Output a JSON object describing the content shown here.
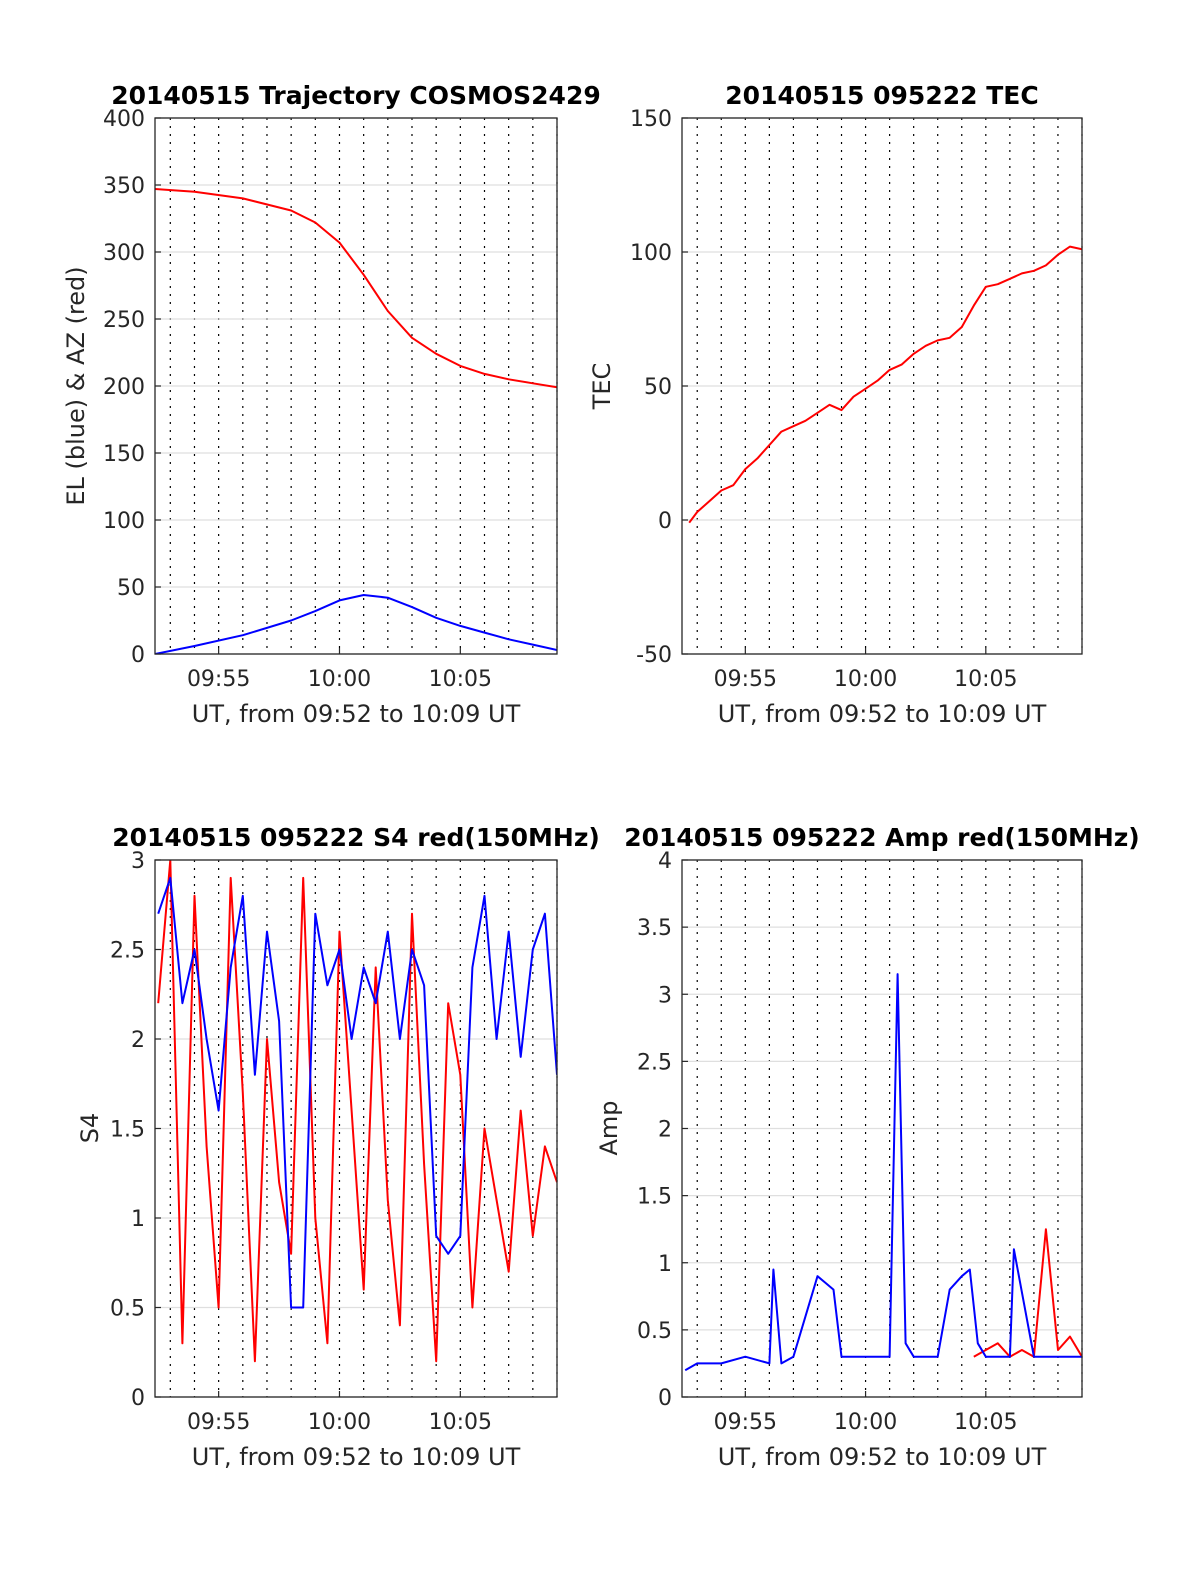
{
  "chart_data": [
    {
      "type": "line",
      "title": "20140515 Trajectory COSMOS2429",
      "xlabel": "UT, from 09:52 to 10:09 UT",
      "ylabel": "EL (blue) & AZ (red)",
      "xlim": [
        "09:52:22",
        "10:09:00"
      ],
      "ylim": [
        0,
        400
      ],
      "yticks": [
        "0",
        "50",
        "100",
        "150",
        "200",
        "250",
        "300",
        "350",
        "400"
      ],
      "xticks": [
        "09:55",
        "10:00",
        "10:05"
      ],
      "grid": true,
      "series": [
        {
          "color": "#ff0000",
          "x": [
            "09:52:22",
            "09:54:00",
            "09:56:00",
            "09:58:00",
            "09:59:00",
            "10:00:00",
            "10:01:00",
            "10:02:00",
            "10:03:00",
            "10:04:00",
            "10:05:00",
            "10:06:00",
            "10:07:00",
            "10:08:00",
            "10:09:00"
          ],
          "values": [
            347,
            345,
            340,
            331,
            322,
            307,
            283,
            256,
            236,
            224,
            215,
            209,
            205,
            202,
            199
          ]
        },
        {
          "color": "#0000ff",
          "x": [
            "09:52:22",
            "09:54:00",
            "09:56:00",
            "09:58:00",
            "09:59:00",
            "10:00:00",
            "10:01:00",
            "10:02:00",
            "10:03:00",
            "10:04:00",
            "10:05:00",
            "10:06:00",
            "10:07:00",
            "10:08:00",
            "10:09:00"
          ],
          "values": [
            0,
            6,
            14,
            25,
            32,
            40,
            44,
            42,
            35,
            27,
            21,
            16,
            11,
            7,
            3
          ]
        }
      ]
    },
    {
      "type": "line",
      "title": "20140515 095222 TEC",
      "xlabel": "UT, from 09:52 to 10:09 UT",
      "ylabel": "TEC",
      "xlim": [
        "09:52:22",
        "10:09:00"
      ],
      "ylim": [
        -50,
        150
      ],
      "yticks": [
        "-50",
        "0",
        "50",
        "100",
        "150"
      ],
      "xticks": [
        "09:55",
        "10:00",
        "10:05"
      ],
      "grid": true,
      "series": [
        {
          "color": "#ff0000",
          "x": [
            "09:52:40",
            "09:53:00",
            "09:53:30",
            "09:54:00",
            "09:54:30",
            "09:55:00",
            "09:55:30",
            "09:56:00",
            "09:56:30",
            "09:57:00",
            "09:57:30",
            "09:58:00",
            "09:58:30",
            "09:59:00",
            "09:59:30",
            "10:00:00",
            "10:00:30",
            "10:01:00",
            "10:01:30",
            "10:02:00",
            "10:02:30",
            "10:03:00",
            "10:03:30",
            "10:04:00",
            "10:04:30",
            "10:05:00",
            "10:05:30",
            "10:06:00",
            "10:06:30",
            "10:07:00",
            "10:07:30",
            "10:08:00",
            "10:08:30",
            "10:09:00"
          ],
          "values": [
            -1,
            3,
            7,
            11,
            13,
            19,
            23,
            28,
            33,
            35,
            37,
            40,
            43,
            41,
            46,
            49,
            52,
            56,
            58,
            62,
            65,
            67,
            68,
            72,
            80,
            87,
            88,
            90,
            92,
            93,
            95,
            99,
            102,
            101
          ]
        }
      ]
    },
    {
      "type": "line",
      "title": "20140515 095222 S4 red(150MHz)",
      "xlabel": "UT, from 09:52 to 10:09 UT",
      "ylabel": "S4",
      "xlim": [
        "09:52:22",
        "10:09:00"
      ],
      "ylim": [
        0,
        3
      ],
      "yticks": [
        "0",
        "0.5",
        "1",
        "1.5",
        "2",
        "2.5",
        "3"
      ],
      "xticks": [
        "09:55",
        "10:00",
        "10:05"
      ],
      "grid": true,
      "series": [
        {
          "color": "#ff0000",
          "x": [
            "09:52:30",
            "09:53:00",
            "09:53:30",
            "09:54:00",
            "09:54:30",
            "09:55:00",
            "09:55:30",
            "09:56:00",
            "09:56:30",
            "09:57:00",
            "09:57:30",
            "09:58:00",
            "09:58:30",
            "09:59:00",
            "09:59:30",
            "10:00:00",
            "10:00:30",
            "10:01:00",
            "10:01:30",
            "10:02:00",
            "10:02:30",
            "10:03:00",
            "10:03:30",
            "10:04:00",
            "10:04:30",
            "10:05:00",
            "10:05:30",
            "10:06:00",
            "10:06:30",
            "10:07:00",
            "10:07:30",
            "10:08:00",
            "10:08:30",
            "10:09:00"
          ],
          "values": [
            2.2,
            3.0,
            0.3,
            2.8,
            1.4,
            0.5,
            2.9,
            1.7,
            0.2,
            2.0,
            1.2,
            0.8,
            2.9,
            1.0,
            0.3,
            2.6,
            1.6,
            0.6,
            2.4,
            1.1,
            0.4,
            2.7,
            1.3,
            0.2,
            2.2,
            1.8,
            0.5,
            1.5,
            1.1,
            0.7,
            1.6,
            0.9,
            1.4,
            1.2
          ]
        },
        {
          "color": "#0000ff",
          "x": [
            "09:52:30",
            "09:53:00",
            "09:53:30",
            "09:54:00",
            "09:54:30",
            "09:55:00",
            "09:55:30",
            "09:56:00",
            "09:56:30",
            "09:57:00",
            "09:57:30",
            "09:58:00",
            "09:58:30",
            "09:59:00",
            "09:59:30",
            "10:00:00",
            "10:00:30",
            "10:01:00",
            "10:01:30",
            "10:02:00",
            "10:02:30",
            "10:03:00",
            "10:03:30",
            "10:04:00",
            "10:04:30",
            "10:05:00",
            "10:05:30",
            "10:06:00",
            "10:06:30",
            "10:07:00",
            "10:07:30",
            "10:08:00",
            "10:08:30",
            "10:09:00"
          ],
          "values": [
            2.7,
            2.9,
            2.2,
            2.5,
            2.0,
            1.6,
            2.4,
            2.8,
            1.8,
            2.6,
            2.1,
            0.5,
            0.5,
            2.7,
            2.3,
            2.5,
            2.0,
            2.4,
            2.2,
            2.6,
            2.0,
            2.5,
            2.3,
            0.9,
            0.8,
            0.9,
            2.4,
            2.8,
            2.0,
            2.6,
            1.9,
            2.5,
            2.7,
            1.8
          ]
        }
      ]
    },
    {
      "type": "line",
      "title": "20140515 095222 Amp red(150MHz)",
      "xlabel": "UT, from 09:52 to 10:09 UT",
      "ylabel": "Amp",
      "xlim": [
        "09:52:22",
        "10:09:00"
      ],
      "ylim": [
        0,
        4
      ],
      "yticks": [
        "0",
        "0.5",
        "1",
        "1.5",
        "2",
        "2.5",
        "3",
        "3.5",
        "4"
      ],
      "xticks": [
        "09:55",
        "10:00",
        "10:05"
      ],
      "grid": true,
      "series": [
        {
          "color": "#ff0000",
          "x": [
            "10:04:30",
            "10:05:00",
            "10:05:30",
            "10:06:00",
            "10:06:30",
            "10:07:00",
            "10:07:30",
            "10:08:00",
            "10:08:30",
            "10:09:00"
          ],
          "values": [
            0.3,
            0.35,
            0.4,
            0.3,
            0.35,
            0.3,
            1.25,
            0.35,
            0.45,
            0.3
          ]
        },
        {
          "color": "#0000ff",
          "x": [
            "09:52:30",
            "09:53:00",
            "09:54:00",
            "09:55:00",
            "09:56:00",
            "09:56:10",
            "09:56:30",
            "09:57:00",
            "09:58:00",
            "09:58:20",
            "09:58:40",
            "09:59:00",
            "10:00:00",
            "10:01:00",
            "10:01:20",
            "10:01:40",
            "10:02:00",
            "10:03:00",
            "10:03:30",
            "10:04:00",
            "10:04:20",
            "10:04:40",
            "10:05:00",
            "10:06:00",
            "10:06:10",
            "10:07:00",
            "10:08:00",
            "10:09:00"
          ],
          "values": [
            0.2,
            0.25,
            0.25,
            0.3,
            0.25,
            0.95,
            0.25,
            0.3,
            0.9,
            0.85,
            0.8,
            0.3,
            0.3,
            0.3,
            3.15,
            0.4,
            0.3,
            0.3,
            0.8,
            0.9,
            0.95,
            0.4,
            0.3,
            0.3,
            1.1,
            0.3,
            0.3,
            0.3
          ]
        }
      ]
    }
  ]
}
